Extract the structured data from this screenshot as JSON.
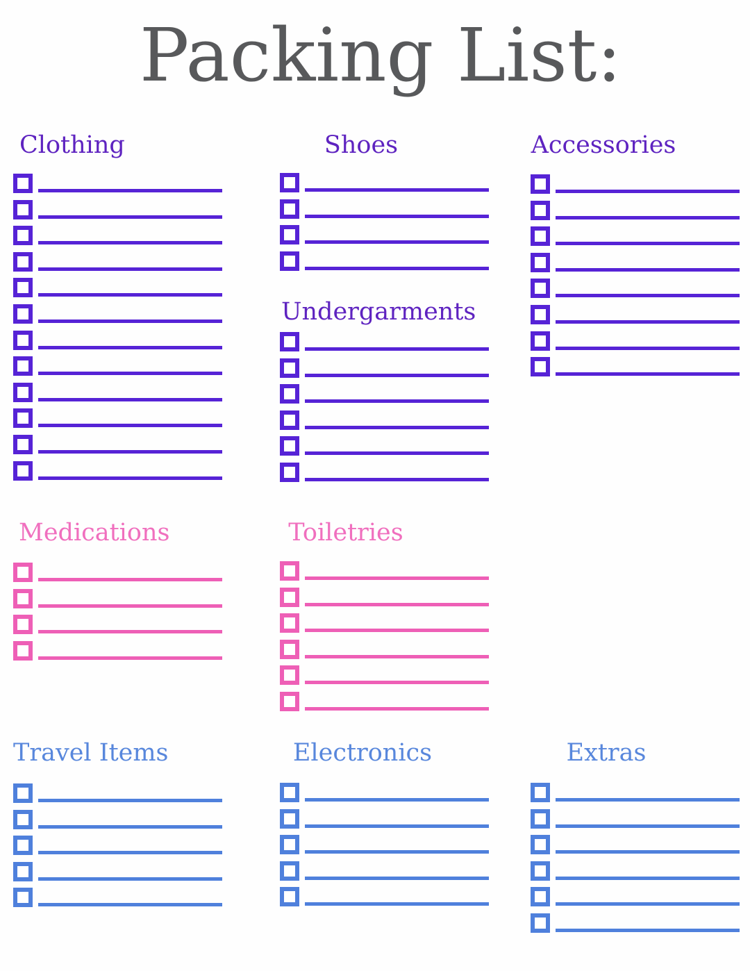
{
  "title": "Packing List:",
  "colors": {
    "title": "#58595b",
    "purple_header": "#5e23c0",
    "purple_item": "#5623d6",
    "pink_header": "#f06fbe",
    "pink_item": "#ee5fb6",
    "blue_header": "#5887dc",
    "blue_item": "#4f80dc"
  },
  "sections": [
    {
      "label": "Clothing",
      "theme": "purple",
      "item_count": 12
    },
    {
      "label": "Shoes",
      "theme": "purple",
      "item_count": 4
    },
    {
      "label": "Undergarments",
      "theme": "purple",
      "item_count": 6
    },
    {
      "label": "Accessories",
      "theme": "purple",
      "item_count": 8
    },
    {
      "label": "Medications",
      "theme": "pink",
      "item_count": 4
    },
    {
      "label": "Toiletries",
      "theme": "pink",
      "item_count": 6
    },
    {
      "label": "Travel Items",
      "theme": "blue",
      "item_count": 5
    },
    {
      "label": "Electronics",
      "theme": "blue",
      "item_count": 5
    },
    {
      "label": "Extras",
      "theme": "blue",
      "item_count": 6
    }
  ]
}
